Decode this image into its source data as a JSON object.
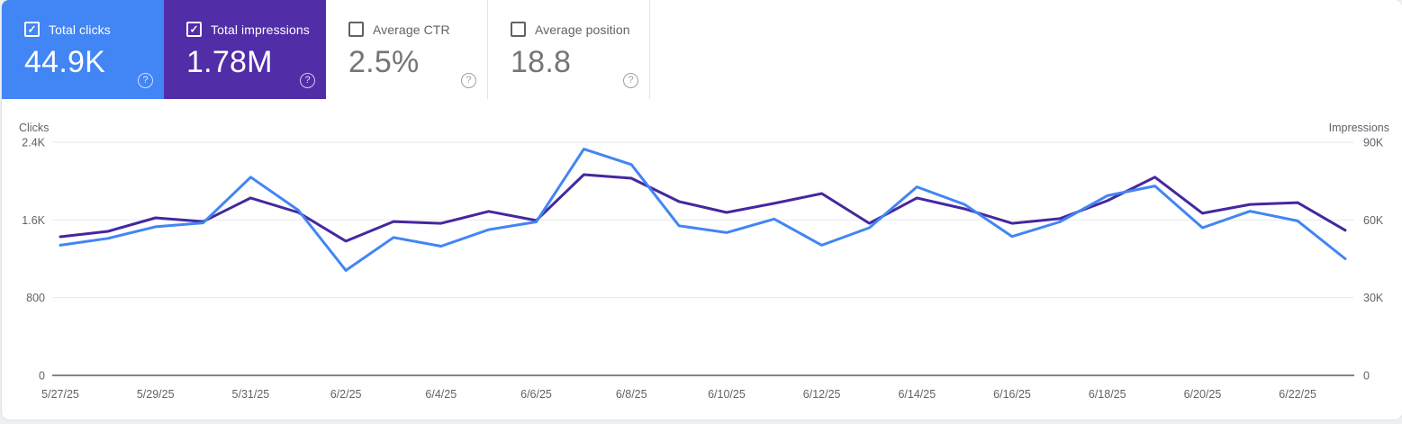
{
  "icons": {
    "check": "✓",
    "help": "?"
  },
  "cards": [
    {
      "id": "total-clicks",
      "label": "Total clicks",
      "value": "44.9K",
      "checked": true,
      "bg": "#4285f4"
    },
    {
      "id": "total-impressions",
      "label": "Total impressions",
      "value": "1.78M",
      "checked": true,
      "bg": "#512da8"
    },
    {
      "id": "average-ctr",
      "label": "Average CTR",
      "value": "2.5%",
      "checked": false,
      "bg": ""
    },
    {
      "id": "average-position",
      "label": "Average position",
      "value": "18.8",
      "checked": false,
      "bg": ""
    }
  ],
  "chart_data": {
    "type": "line",
    "x": [
      "5/27/25",
      "5/28/25",
      "5/29/25",
      "5/30/25",
      "5/31/25",
      "6/1/25",
      "6/2/25",
      "6/3/25",
      "6/4/25",
      "6/5/25",
      "6/6/25",
      "6/7/25",
      "6/8/25",
      "6/9/25",
      "6/10/25",
      "6/11/25",
      "6/12/25",
      "6/13/25",
      "6/14/25",
      "6/15/25",
      "6/16/25",
      "6/17/25",
      "6/18/25",
      "6/19/25",
      "6/20/25",
      "6/21/25",
      "6/22/25",
      "6/23/25"
    ],
    "x_tick_labels": [
      "5/27/25",
      "5/29/25",
      "5/31/25",
      "6/2/25",
      "6/4/25",
      "6/6/25",
      "6/8/25",
      "6/10/25",
      "6/12/25",
      "6/14/25",
      "6/16/25",
      "6/18/25",
      "6/20/25",
      "6/22/25"
    ],
    "series": [
      {
        "name": "Clicks",
        "axis": "left",
        "color": "#4285f4",
        "values": [
          1340,
          1410,
          1530,
          1570,
          2040,
          1700,
          1080,
          1420,
          1330,
          1500,
          1580,
          2330,
          2170,
          1540,
          1470,
          1610,
          1340,
          1520,
          1940,
          1760,
          1430,
          1580,
          1850,
          1950,
          1520,
          1690,
          1590,
          1200
        ]
      },
      {
        "name": "Impressions",
        "axis": "right",
        "color": "#4527a0",
        "values": [
          53500,
          55600,
          60800,
          59400,
          68500,
          62900,
          51800,
          59400,
          58700,
          63300,
          59800,
          77500,
          76100,
          67100,
          62900,
          66400,
          70200,
          58700,
          68500,
          64300,
          58700,
          60500,
          67400,
          76500,
          62600,
          66000,
          66700,
          56000
        ]
      }
    ],
    "left_axis": {
      "title": "Clicks",
      "ticks": [
        "2.4K",
        "1.6K",
        "800",
        "0"
      ],
      "max_value": 2400,
      "min_value": 0
    },
    "right_axis": {
      "title": "Impressions",
      "ticks": [
        "90K",
        "60K",
        "30K",
        "0"
      ],
      "max_value": 90000,
      "min_value": 0
    },
    "grid": "horizontal",
    "legend": "none",
    "colors": {
      "grid_line": "#e8eaed",
      "zero_line": "#80868b",
      "tick_text": "#5f6368"
    }
  }
}
